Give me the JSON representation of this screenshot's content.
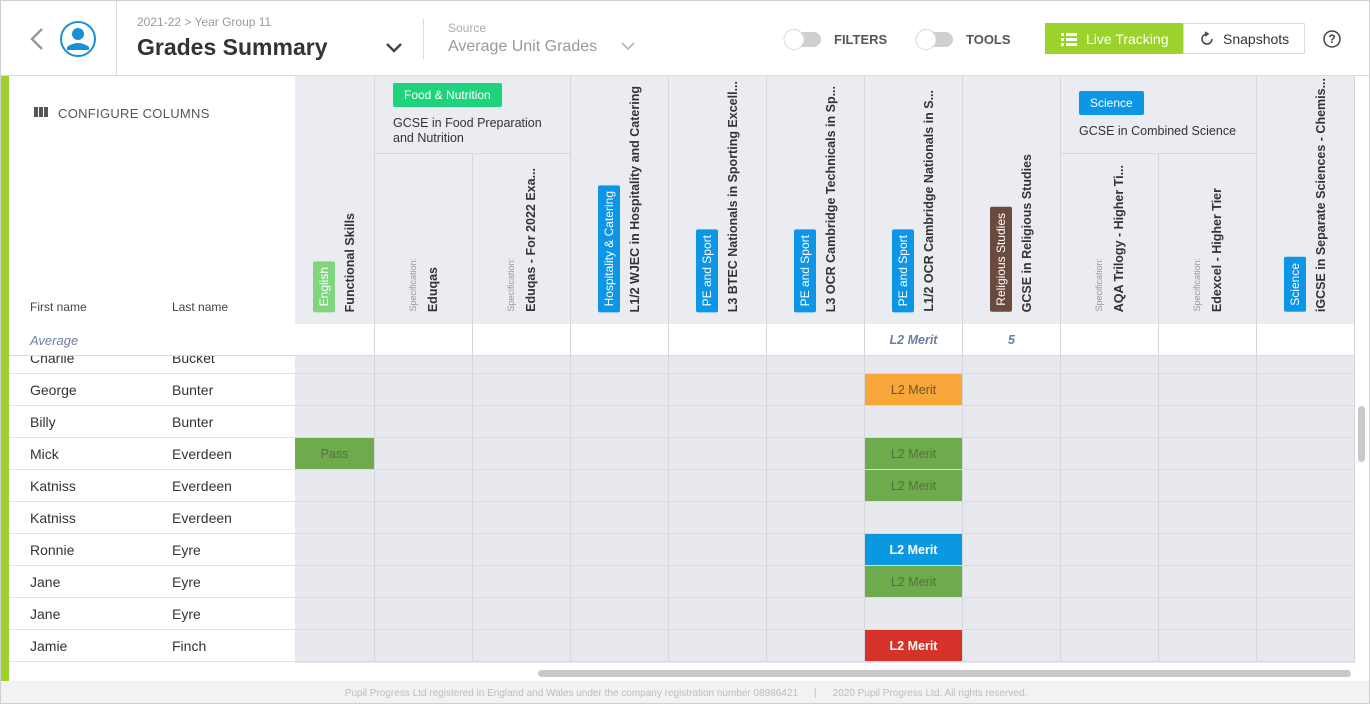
{
  "header": {
    "breadcrumb": "2021-22 > Year Group 11",
    "title": "Grades Summary",
    "source_label": "Source",
    "source_value": "Average Unit Grades",
    "filters": "FILTERS",
    "tools": "TOOLS",
    "live_tracking": "Live Tracking",
    "snapshots": "Snapshots",
    "help": "?"
  },
  "sidebar": {
    "configure_columns": "CONFIGURE COLUMNS",
    "first_name": "First name",
    "last_name": "Last name"
  },
  "column_groups": [
    {
      "columns": [
        {
          "tag": "English",
          "tag_color": "#7fd67f",
          "title": "Functional Skills"
        }
      ]
    },
    {
      "tag": "Food & Nutrition",
      "tag_color": "#1fd37c",
      "title": "GCSE in Food Preparation and Nutrition",
      "columns": [
        {
          "spec_label": "Specification:",
          "title": "Eduqas"
        },
        {
          "spec_label": "Specification:",
          "title": "Eduqas - For 2022 Exa..."
        }
      ]
    },
    {
      "columns": [
        {
          "tag": "Hospitality & Catering",
          "tag_color": "#0d96e6",
          "title": "L1/2 WJEC in Hospitality and Catering"
        }
      ]
    },
    {
      "columns": [
        {
          "tag": "PE and Sport",
          "tag_color": "#0d96e6",
          "title": "L3 BTEC Nationals in Sporting Excell..."
        }
      ]
    },
    {
      "columns": [
        {
          "tag": "PE and Sport",
          "tag_color": "#0d96e6",
          "title": "L3 OCR Cambridge Technicals in Sp..."
        }
      ]
    },
    {
      "columns": [
        {
          "tag": "PE and Sport",
          "tag_color": "#0d96e6",
          "title": "L1/2 OCR Cambridge Nationals in S..."
        }
      ]
    },
    {
      "columns": [
        {
          "tag": "Religious Studies",
          "tag_color": "#6b4a3e",
          "title": "GCSE in Religious Studies"
        }
      ]
    },
    {
      "tag": "Science",
      "tag_color": "#0d96e6",
      "title": "GCSE in Combined Science",
      "columns": [
        {
          "spec_label": "Specification:",
          "title": "AQA Trilogy - Higher Ti..."
        },
        {
          "spec_label": "Specification:",
          "title": "Edexcel - Higher Tier"
        }
      ]
    },
    {
      "columns": [
        {
          "tag": "Science",
          "tag_color": "#0d96e6",
          "title": "iGCSE in Separate Sciences - Chemis..."
        }
      ]
    }
  ],
  "average": {
    "label": "Average",
    "grades": [
      {
        "column": 6,
        "text": "L2 Merit"
      },
      {
        "column": 7,
        "text": "5"
      }
    ]
  },
  "rows": [
    {
      "first": "Charlie",
      "last": "Bucket",
      "grades": []
    },
    {
      "first": "George",
      "last": "Bunter",
      "grades": [
        {
          "column": 6,
          "text": "L2 Merit",
          "color": "#f8a53a",
          "text_color": "#6b5430"
        }
      ]
    },
    {
      "first": "Billy",
      "last": "Bunter",
      "grades": []
    },
    {
      "first": "Mick",
      "last": "Everdeen",
      "grades": [
        {
          "column": 0,
          "text": "Pass",
          "color": "#6dab4c",
          "text_color": "#587048"
        },
        {
          "column": 6,
          "text": "L2 Merit",
          "color": "#6dab4c",
          "text_color": "#587048"
        }
      ]
    },
    {
      "first": "Katniss",
      "last": "Everdeen",
      "grades": [
        {
          "column": 6,
          "text": "L2 Merit",
          "color": "#6dab4c",
          "text_color": "#587048"
        }
      ]
    },
    {
      "first": "Katniss",
      "last": "Everdeen",
      "grades": []
    },
    {
      "first": "Ronnie",
      "last": "Eyre",
      "grades": [
        {
          "column": 6,
          "text": "L2 Merit",
          "color": "#0b98e3",
          "text_color": "#ffffff"
        }
      ]
    },
    {
      "first": "Jane",
      "last": "Eyre",
      "grades": [
        {
          "column": 6,
          "text": "L2 Merit",
          "color": "#6dab4c",
          "text_color": "#587048"
        }
      ]
    },
    {
      "first": "Jane",
      "last": "Eyre",
      "grades": []
    },
    {
      "first": "Jamie",
      "last": "Finch",
      "grades": [
        {
          "column": 6,
          "text": "L2 Merit",
          "color": "#d5322a",
          "text_color": "#ffffff"
        }
      ]
    }
  ],
  "footer": {
    "registration": "Pupil Progress Ltd registered in England and Wales under the company registration number 08986421",
    "separator": "|",
    "copyright": "2020 Pupil Progress Ltd. All rights reserved."
  }
}
